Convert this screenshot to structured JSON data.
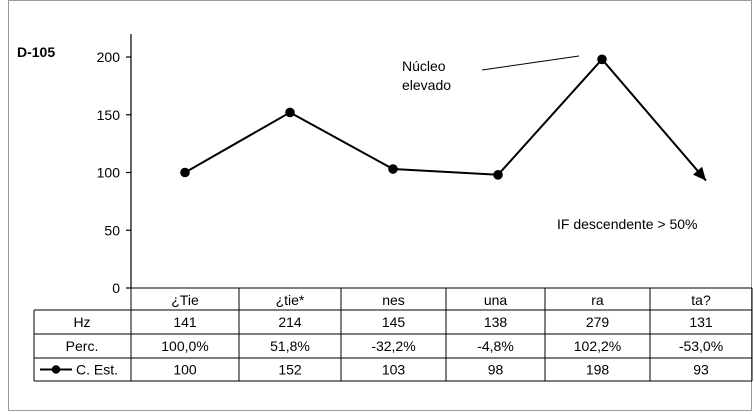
{
  "chart_data": {
    "type": "line",
    "panel_label": "D-105",
    "y_ticks": [
      "200",
      "150",
      "100",
      "50",
      "0"
    ],
    "ylim": [
      0,
      200
    ],
    "categories": [
      "¿Tie",
      "¿tie*",
      "nes",
      "una",
      "ra",
      "ta?"
    ],
    "series": [
      {
        "name": "C. Est.",
        "values": [
          100,
          152,
          103,
          98,
          198,
          93
        ]
      }
    ],
    "annotations": {
      "nucleus_line1": "Núcleo",
      "nucleus_line2": "elevado",
      "final_inflection": "IF descendente > 50%"
    },
    "table": {
      "rows": [
        {
          "label": "Hz",
          "values": [
            "141",
            "214",
            "145",
            "138",
            "279",
            "131"
          ]
        },
        {
          "label": "Perc.",
          "values": [
            "100,0%",
            "51,8%",
            "-32,2%",
            "-4,8%",
            "102,2%",
            "-53,0%"
          ]
        },
        {
          "label": "C. Est.",
          "values": [
            "100",
            "152",
            "103",
            "98",
            "198",
            "93"
          ]
        }
      ]
    },
    "colors": {
      "line": "#000000",
      "grid": "#000000",
      "frame": "#9a9a9a"
    }
  }
}
